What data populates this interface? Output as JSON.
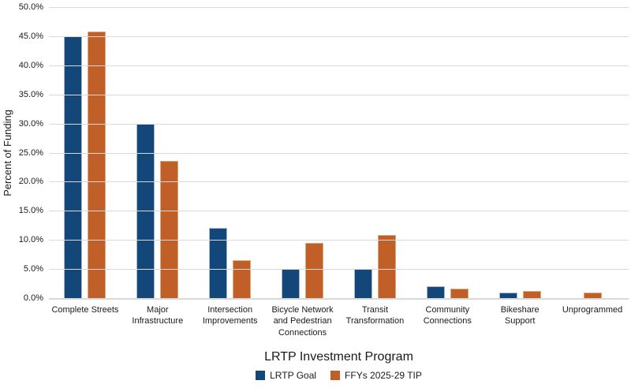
{
  "chart_data": {
    "type": "bar",
    "xlabel": "LRTP Investment Program",
    "ylabel": "Percent of Funding",
    "ylim": [
      0,
      50
    ],
    "ytick_step": 5,
    "ytick_suffix": "%",
    "ytick_decimals": 1,
    "grid": true,
    "legend_position": "bottom-center",
    "gridline_color": "#D9D9D9",
    "text_color": "#1A1A1A",
    "background_color": "#FFFFFF",
    "categories": [
      "Complete Streets",
      "Major Infrastructure",
      "Intersection Improvements",
      "Bicycle Network and Pedestrian Connections",
      "Transit Transformation",
      "Community Connections",
      "Bikeshare Support",
      "Unprogrammed"
    ],
    "series": [
      {
        "name": "LRTP Goal",
        "color": "#134779",
        "border_color": "#A3B8CF",
        "values": [
          45.0,
          30.0,
          12.0,
          5.0,
          5.0,
          2.0,
          1.0,
          0.0
        ]
      },
      {
        "name": "FFYs 2025-29 TIP",
        "color": "#C06028",
        "border_color": "#DCA877",
        "values": [
          45.8,
          23.6,
          6.5,
          9.5,
          10.9,
          1.6,
          1.2,
          0.9
        ]
      }
    ]
  }
}
